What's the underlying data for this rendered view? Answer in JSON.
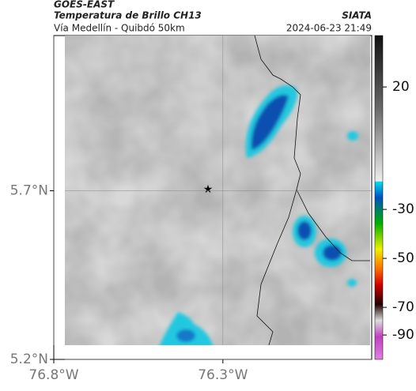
{
  "header": {
    "title": "GOES-EAST",
    "subtitle": "Temperatura de Brillo CH13",
    "location": "Vía Medellín - Quibdó 50km",
    "source": "SIATA",
    "datetime": "2024-06-23 21:49"
  },
  "map": {
    "xlim": [
      -76.8,
      -75.86
    ],
    "ylim": [
      5.2,
      6.16
    ],
    "xticks": [
      {
        "value": -76.8,
        "label": "76.8°W"
      },
      {
        "value": -76.3,
        "label": "76.3°W"
      }
    ],
    "yticks": [
      {
        "value": 5.2,
        "label": "5.2°N"
      },
      {
        "value": 5.7,
        "label": "5.7°N"
      }
    ]
  },
  "colorbar": {
    "clim": [
      -110,
      41
    ],
    "ticks": [
      20,
      -30,
      -50,
      -70,
      -90
    ]
  }
}
